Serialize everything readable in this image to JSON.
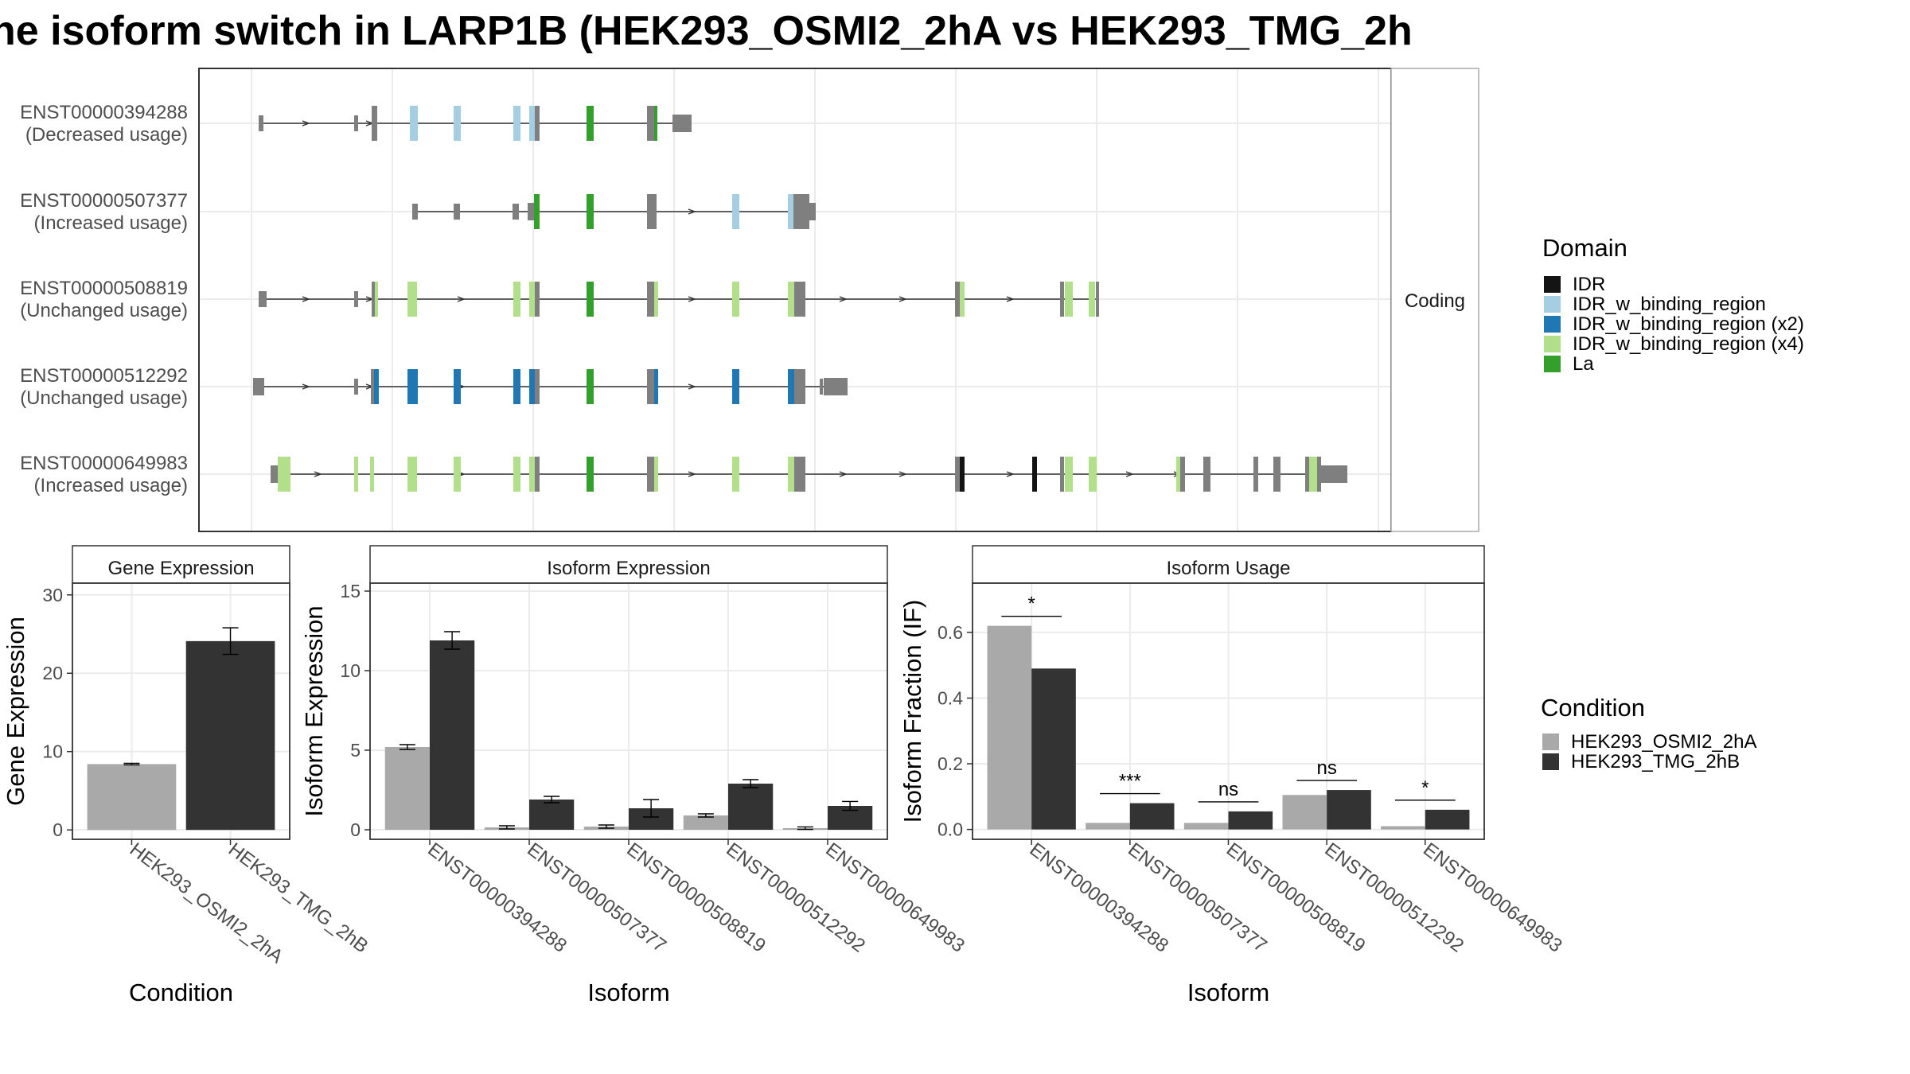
{
  "title": "ne isoform switch in LARP1B (HEK293_OSMI2_2hA vs HEK293_TMG_2h",
  "colors": {
    "IDR": "#141414",
    "IDR_w_binding_region": "#a6cee3",
    "IDR_w_binding_region (x2)": "#1f78b4",
    "IDR_w_binding_region (x4)": "#b2df8a",
    "La": "#33a02c",
    "exon": "#7f7f7f",
    "cond1": "#a9a9a9",
    "cond2": "#333333"
  },
  "structure": {
    "strip_label": "Coding",
    "transcripts": [
      {
        "id": "ENST00000394288",
        "usage": "(Decreased usage)"
      },
      {
        "id": "ENST00000507377",
        "usage": "(Increased usage)"
      },
      {
        "id": "ENST00000508819",
        "usage": "(Unchanged usage)"
      },
      {
        "id": "ENST00000512292",
        "usage": "(Unchanged usage)"
      },
      {
        "id": "ENST00000649983",
        "usage": "(Increased usage)"
      }
    ]
  },
  "domain_legend": {
    "title": "Domain",
    "items": [
      "IDR",
      "IDR_w_binding_region",
      "IDR_w_binding_region (x2)",
      "IDR_w_binding_region (x4)",
      "La"
    ]
  },
  "condition_legend": {
    "title": "Condition",
    "items": [
      "HEK293_OSMI2_2hA",
      "HEK293_TMG_2hB"
    ]
  },
  "chart_data": [
    {
      "type": "bar",
      "title": "Gene Expression",
      "xlabel": "Condition",
      "ylabel": "Gene Expression",
      "categories": [
        "HEK293_OSMI2_2hA",
        "HEK293_TMG_2hB"
      ],
      "values": [
        8.4,
        24.1
      ],
      "errors": [
        0.1,
        1.7
      ],
      "ylim": [
        -1.2,
        31.5
      ],
      "yticks": [
        "0",
        "10",
        "20",
        "30"
      ]
    },
    {
      "type": "bar",
      "title": "Isoform Expression",
      "xlabel": "Isoform",
      "ylabel": "Isoform Expression",
      "categories": [
        "ENST00000394288",
        "ENST00000507377",
        "ENST00000508819",
        "ENST00000512292",
        "ENST00000649983"
      ],
      "series": [
        {
          "name": "HEK293_OSMI2_2hA",
          "values": [
            5.2,
            0.15,
            0.2,
            0.9,
            0.1
          ],
          "errors": [
            0.15,
            0.1,
            0.1,
            0.1,
            0.08
          ]
        },
        {
          "name": "HEK293_TMG_2hB",
          "values": [
            11.9,
            1.9,
            1.35,
            2.9,
            1.5
          ],
          "errors": [
            0.55,
            0.2,
            0.55,
            0.25,
            0.28
          ]
        }
      ],
      "ylim": [
        -0.6,
        15.5
      ],
      "yticks": [
        "0",
        "5",
        "10",
        "15"
      ]
    },
    {
      "type": "bar",
      "title": "Isoform Usage",
      "xlabel": "Isoform",
      "ylabel": "Isoform Fraction (IF)",
      "categories": [
        "ENST00000394288",
        "ENST00000507377",
        "ENST00000508819",
        "ENST00000512292",
        "ENST00000649983"
      ],
      "series": [
        {
          "name": "HEK293_OSMI2_2hA",
          "values": [
            0.62,
            0.02,
            0.02,
            0.105,
            0.01
          ]
        },
        {
          "name": "HEK293_TMG_2hB",
          "values": [
            0.49,
            0.08,
            0.055,
            0.12,
            0.06
          ]
        }
      ],
      "significance": [
        "*",
        "***",
        "ns",
        "ns",
        "*"
      ],
      "ylim": [
        -0.03,
        0.75
      ],
      "yticks": [
        "0.0",
        "0.2",
        "0.4",
        "0.6"
      ]
    }
  ]
}
